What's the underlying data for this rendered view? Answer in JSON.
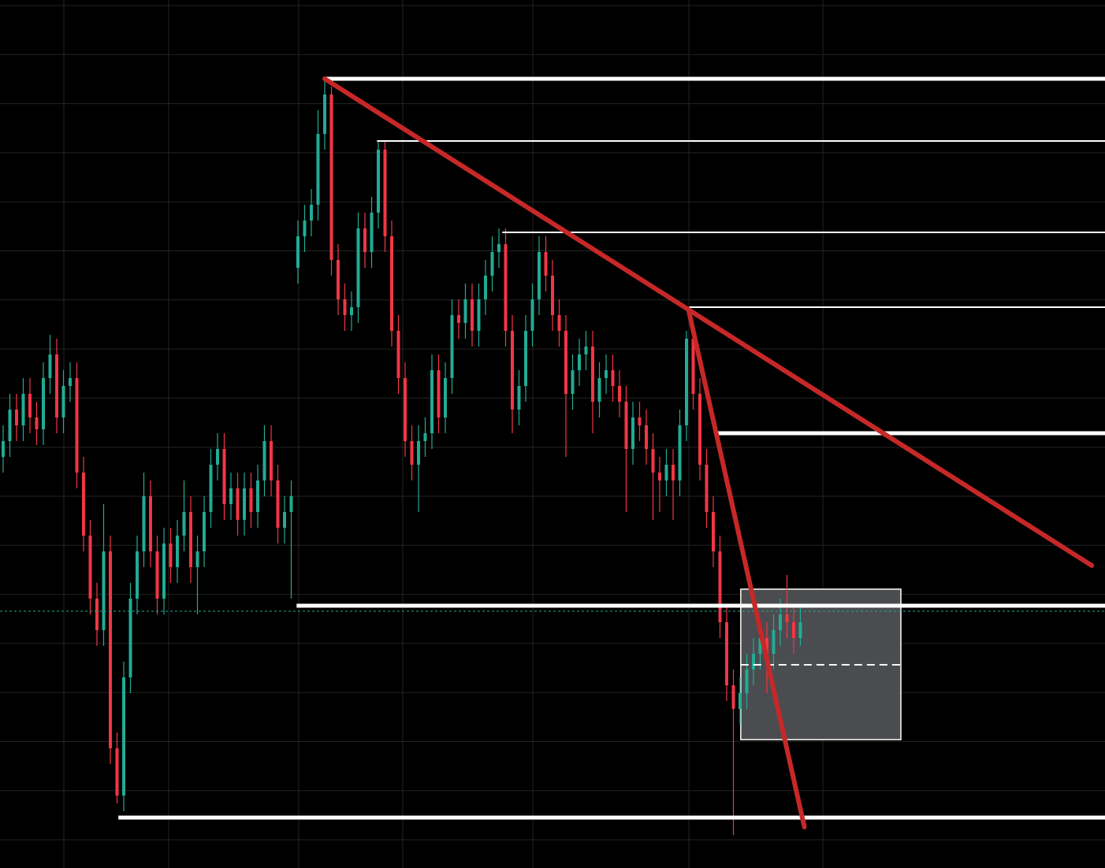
{
  "chart_data": {
    "type": "candlestick",
    "ylim": [
      0,
      110
    ],
    "up_color": "#22ab94",
    "down_color": "#f23645",
    "open": [
      52,
      54,
      58,
      56,
      60,
      57,
      55.5,
      62,
      65,
      57,
      61,
      62,
      50,
      42,
      34,
      30,
      40,
      15,
      9,
      24,
      34,
      40,
      47,
      40,
      34,
      41,
      38,
      42,
      45,
      38,
      40,
      45,
      51,
      53,
      46,
      48,
      44,
      48,
      45,
      49,
      54,
      49,
      43,
      45,
      76,
      80,
      82,
      84,
      93,
      98,
      77,
      72,
      70,
      71,
      81,
      78,
      83,
      91,
      80,
      68,
      62,
      54,
      51,
      54,
      55,
      63,
      57,
      62,
      70,
      69,
      72,
      68,
      72,
      75,
      78,
      79,
      68,
      58,
      61,
      68,
      72,
      78,
      75,
      70,
      68,
      60,
      63,
      65,
      66,
      59,
      62,
      63,
      61,
      59,
      53,
      57,
      56,
      53,
      50,
      49,
      51,
      49,
      56,
      67,
      60,
      51,
      45,
      40,
      31,
      23,
      20,
      22,
      25,
      27,
      29,
      27,
      30,
      32,
      31,
      29
    ],
    "high": [
      56,
      60,
      60,
      62,
      62,
      59,
      64,
      67.5,
      67,
      63,
      64,
      64,
      52,
      44,
      36,
      46,
      42,
      17,
      26,
      36,
      42,
      50,
      49,
      42,
      43,
      43,
      44,
      49,
      47,
      42,
      47,
      53,
      55,
      55,
      50,
      50,
      50,
      50,
      51,
      56,
      56,
      51,
      47,
      49,
      82,
      84,
      86,
      96,
      100,
      99,
      79,
      74,
      73,
      83,
      83,
      85,
      92,
      92,
      82,
      70,
      64,
      56,
      56,
      57,
      65,
      65,
      64,
      72,
      72,
      74,
      74,
      74,
      77,
      80,
      81,
      81,
      70,
      63,
      70,
      74,
      80,
      80,
      77,
      72,
      70,
      65,
      67,
      68,
      68,
      64,
      65,
      65,
      63,
      61,
      59,
      59,
      58,
      55,
      52,
      53,
      53,
      58,
      68,
      69,
      62,
      53,
      47,
      42,
      33,
      25,
      24,
      27,
      29,
      31,
      31,
      32,
      34,
      37,
      33,
      33
    ],
    "low": [
      50,
      52,
      54,
      54,
      55,
      53.5,
      53.5,
      60,
      55,
      55,
      59,
      48,
      40,
      32,
      28,
      28,
      13,
      8,
      7,
      22,
      32,
      38,
      38,
      32,
      32,
      36,
      36,
      40,
      36,
      32,
      38,
      43,
      49,
      44,
      44,
      42,
      42,
      43,
      43,
      47,
      47,
      41,
      41,
      34,
      74,
      78,
      80,
      82,
      91,
      75,
      70,
      68,
      68,
      69,
      76,
      76,
      81,
      78,
      66,
      60,
      52,
      49,
      45,
      52,
      53,
      55,
      55,
      60,
      67,
      67,
      66,
      66,
      70,
      73,
      76,
      66,
      55,
      56,
      59,
      66,
      70,
      73,
      68,
      66,
      52,
      58,
      61,
      63,
      55,
      57,
      60,
      59,
      57,
      45,
      51,
      54,
      51,
      44,
      45,
      47,
      44,
      47,
      54,
      58,
      49,
      43,
      38,
      29,
      21,
      4,
      18,
      20,
      23,
      25,
      22,
      25,
      28,
      29,
      27,
      28
    ],
    "close": [
      54,
      58,
      56,
      60,
      57,
      55.5,
      62,
      65,
      57,
      61,
      62,
      50,
      42,
      34,
      30,
      40,
      15,
      9,
      24,
      34,
      40,
      47,
      40,
      34,
      41,
      38,
      42,
      45,
      38,
      40,
      45,
      51,
      53,
      46,
      48,
      44,
      48,
      45,
      49,
      54,
      49,
      43,
      45,
      47,
      80,
      82,
      84,
      93,
      98,
      77,
      72,
      70,
      71,
      81,
      78,
      83,
      91,
      80,
      68,
      62,
      54,
      51,
      54,
      55,
      63,
      57,
      62,
      70,
      69,
      72,
      68,
      72,
      75,
      78,
      79,
      68,
      58,
      61,
      68,
      72,
      78,
      75,
      70,
      68,
      60,
      63,
      65,
      66,
      59,
      62,
      63,
      61,
      59,
      53,
      57,
      56,
      53,
      50,
      49,
      51,
      49,
      56,
      67,
      60,
      51,
      45,
      40,
      31,
      23,
      20,
      22,
      25,
      27,
      29,
      27,
      30,
      32,
      31,
      29,
      31
    ],
    "levels": [
      {
        "start": 48,
        "price": 100,
        "thick": true
      },
      {
        "start": 55.8,
        "price": 92.1,
        "thick": false
      },
      {
        "start": 74.5,
        "price": 80.5,
        "thick": false
      },
      {
        "start": 102.4,
        "price": 71,
        "thick": false
      },
      {
        "start": 106.4,
        "price": 55,
        "thick": true
      },
      {
        "start": 43.8,
        "price": 33.1,
        "thick": true
      },
      {
        "start": 17.2,
        "price": 6.2,
        "thick": true
      }
    ],
    "trendlines": [
      {
        "x": [
          48,
          162.5
        ],
        "y": [
          100,
          38.2
        ],
        "color": "#c62828"
      },
      {
        "x": [
          102.35,
          119.6
        ],
        "y": [
          70.5,
          5
        ],
        "color": "#c62828"
      }
    ],
    "box": {
      "x": [
        110.1,
        134
      ],
      "y": [
        16.1,
        35.2
      ],
      "mid": 25.6
    },
    "last_price": 32.4,
    "last_price_color": "#22ab94"
  }
}
